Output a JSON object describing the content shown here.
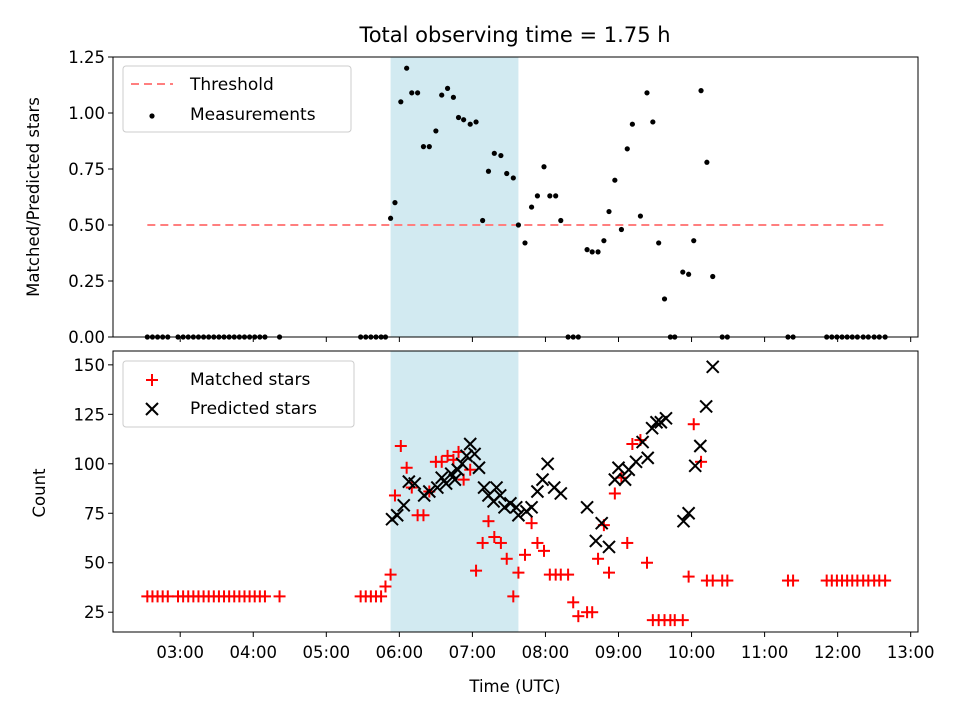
{
  "colors": {
    "threshold": "#ff7f7f",
    "span": "#add8e6",
    "matched": "#ff0000",
    "predicted": "#000000",
    "measurement": "#000000"
  },
  "chart_data": [
    {
      "type": "scatter",
      "title": "Total observing time = 1.75 h",
      "ylabel": "Matched/Predicted stars",
      "xlabel": "",
      "x_unit": "hours UTC",
      "xlim": [
        2.08,
        13.1
      ],
      "ylim": [
        0,
        1.25
      ],
      "yticks": [
        0,
        0.25,
        0.5,
        0.75,
        1.0,
        1.25
      ],
      "ytick_labels": [
        "0.00",
        "0.25",
        "0.50",
        "0.75",
        "1.00",
        "1.25"
      ],
      "legend_position": "upper-left",
      "observing_window": [
        5.88,
        7.63
      ],
      "series": [
        {
          "name": "Threshold",
          "style": "dashed-line",
          "x": [
            2.55,
            12.65
          ],
          "y": [
            0.5,
            0.5
          ]
        },
        {
          "name": "Measurements",
          "style": "dot",
          "x": [
            2.55,
            2.62,
            2.69,
            2.76,
            2.83,
            2.97,
            3.04,
            3.11,
            3.18,
            3.25,
            3.32,
            3.39,
            3.46,
            3.53,
            3.6,
            3.67,
            3.74,
            3.81,
            3.88,
            3.95,
            4.02,
            4.09,
            4.16,
            4.36,
            5.47,
            5.54,
            5.61,
            5.68,
            5.75,
            5.81,
            5.88,
            5.94,
            6.02,
            6.1,
            6.17,
            6.25,
            6.33,
            6.41,
            6.5,
            6.58,
            6.66,
            6.74,
            6.81,
            6.88,
            6.97,
            7.05,
            7.14,
            7.22,
            7.3,
            7.39,
            7.47,
            7.56,
            7.63,
            7.72,
            7.81,
            7.89,
            7.98,
            8.06,
            8.14,
            8.21,
            8.31,
            8.38,
            8.45,
            8.57,
            8.64,
            8.72,
            8.8,
            8.87,
            8.95,
            9.04,
            9.12,
            9.19,
            9.3,
            9.39,
            9.47,
            9.55,
            9.63,
            9.71,
            9.77,
            9.88,
            9.96,
            10.03,
            10.13,
            10.21,
            10.29,
            10.42,
            10.49,
            11.32,
            11.39,
            11.85,
            11.92,
            11.99,
            12.06,
            12.13,
            12.2,
            12.27,
            12.35,
            12.42,
            12.5,
            12.57,
            12.65
          ],
          "y": [
            0,
            0,
            0,
            0,
            0,
            0,
            0,
            0,
            0,
            0,
            0,
            0,
            0,
            0,
            0,
            0,
            0,
            0,
            0,
            0,
            0,
            0,
            0,
            0,
            0,
            0,
            0,
            0,
            0,
            0,
            0.53,
            0.6,
            1.05,
            1.2,
            1.09,
            1.09,
            0.85,
            0.85,
            0.92,
            1.08,
            1.11,
            1.07,
            0.98,
            0.97,
            0.95,
            0.96,
            0.52,
            0.74,
            0.82,
            0.81,
            0.73,
            0.71,
            0.5,
            0.42,
            0.58,
            0.63,
            0.76,
            0.63,
            0.63,
            0.52,
            0,
            0,
            0,
            0.39,
            0.38,
            0.38,
            0.43,
            0.56,
            0.7,
            0.48,
            0.84,
            0.95,
            0.54,
            1.09,
            0.96,
            0.42,
            0.17,
            0,
            0,
            0.29,
            0.28,
            0.43,
            1.1,
            0.78,
            0.27,
            0,
            0,
            0,
            0,
            0,
            0,
            0,
            0,
            0,
            0,
            0,
            0,
            0,
            0,
            0,
            0
          ]
        }
      ]
    },
    {
      "type": "scatter",
      "title": "",
      "ylabel": "Count",
      "xlabel": "Time (UTC)",
      "x_unit": "hours UTC",
      "xlim": [
        2.08,
        13.1
      ],
      "ylim": [
        15,
        157
      ],
      "xticks": [
        3,
        4,
        5,
        6,
        7,
        8,
        9,
        10,
        11,
        12,
        13
      ],
      "xtick_labels": [
        "03:00",
        "04:00",
        "05:00",
        "06:00",
        "07:00",
        "08:00",
        "09:00",
        "10:00",
        "11:00",
        "12:00",
        "13:00"
      ],
      "yticks": [
        25,
        50,
        75,
        100,
        125,
        150
      ],
      "ytick_labels": [
        "25",
        "50",
        "75",
        "100",
        "125",
        "150"
      ],
      "legend_position": "upper-left",
      "observing_window": [
        5.88,
        7.63
      ],
      "series": [
        {
          "name": "Matched stars",
          "style": "plus",
          "x": [
            2.55,
            2.62,
            2.69,
            2.76,
            2.83,
            2.97,
            3.04,
            3.11,
            3.18,
            3.25,
            3.32,
            3.39,
            3.46,
            3.53,
            3.6,
            3.67,
            3.74,
            3.81,
            3.88,
            3.95,
            4.02,
            4.09,
            4.16,
            4.36,
            5.47,
            5.54,
            5.61,
            5.68,
            5.75,
            5.81,
            5.88,
            5.94,
            6.02,
            6.1,
            6.17,
            6.25,
            6.33,
            6.41,
            6.5,
            6.58,
            6.66,
            6.74,
            6.81,
            6.88,
            6.97,
            7.05,
            7.14,
            7.22,
            7.3,
            7.39,
            7.47,
            7.56,
            7.63,
            7.72,
            7.81,
            7.89,
            7.98,
            8.06,
            8.14,
            8.21,
            8.31,
            8.38,
            8.45,
            8.57,
            8.64,
            8.72,
            8.8,
            8.87,
            8.95,
            9.04,
            9.12,
            9.19,
            9.3,
            9.39,
            9.47,
            9.55,
            9.63,
            9.71,
            9.77,
            9.88,
            9.96,
            10.03,
            10.13,
            10.21,
            10.29,
            10.42,
            10.49,
            11.32,
            11.39,
            11.85,
            11.92,
            11.99,
            12.06,
            12.13,
            12.2,
            12.27,
            12.35,
            12.42,
            12.5,
            12.57,
            12.65
          ],
          "y": [
            33,
            33,
            33,
            33,
            33,
            33,
            33,
            33,
            33,
            33,
            33,
            33,
            33,
            33,
            33,
            33,
            33,
            33,
            33,
            33,
            33,
            33,
            33,
            33,
            33,
            33,
            33,
            33,
            33,
            38,
            44,
            84,
            109,
            98,
            88,
            74,
            74,
            86,
            101,
            101,
            104,
            102,
            106,
            92,
            97,
            46,
            60,
            71,
            63,
            60,
            52,
            33,
            45,
            54,
            70,
            60,
            56,
            44,
            44,
            44,
            44,
            30,
            23,
            25,
            25,
            52,
            69,
            45,
            85,
            93,
            60,
            110,
            112,
            50,
            21,
            21,
            21,
            21,
            21,
            21,
            43,
            120,
            101,
            41,
            41,
            41,
            41,
            41,
            41,
            41,
            41,
            41,
            41,
            41,
            41,
            41,
            41,
            41,
            41,
            41,
            41
          ]
        },
        {
          "name": "Predicted stars",
          "style": "x",
          "x": [
            5.9,
            5.97,
            6.06,
            6.13,
            6.21,
            6.34,
            6.41,
            6.52,
            6.58,
            6.64,
            6.71,
            6.76,
            6.8,
            6.86,
            6.92,
            6.97,
            7.03,
            7.09,
            7.16,
            7.22,
            7.29,
            7.33,
            7.38,
            7.44,
            7.52,
            7.6,
            7.63,
            7.74,
            7.81,
            7.89,
            7.96,
            8.03,
            8.12,
            8.21,
            8.57,
            8.69,
            8.77,
            8.87,
            8.95,
            9.0,
            9.09,
            9.14,
            9.24,
            9.33,
            9.4,
            9.46,
            9.52,
            9.58,
            9.65,
            9.89,
            9.96,
            10.05,
            10.12,
            10.2,
            10.29
          ],
          "y": [
            72,
            74,
            79,
            91,
            90,
            84,
            86,
            88,
            93,
            90,
            95,
            92,
            97,
            100,
            104,
            110,
            105,
            98,
            88,
            84,
            81,
            88,
            84,
            78,
            80,
            78,
            74,
            76,
            78,
            86,
            92,
            100,
            88,
            85,
            78,
            61,
            70,
            58,
            92,
            98,
            92,
            97,
            101,
            111,
            103,
            118,
            121,
            121,
            123,
            71,
            75,
            99,
            109,
            129,
            149
          ]
        }
      ]
    }
  ]
}
